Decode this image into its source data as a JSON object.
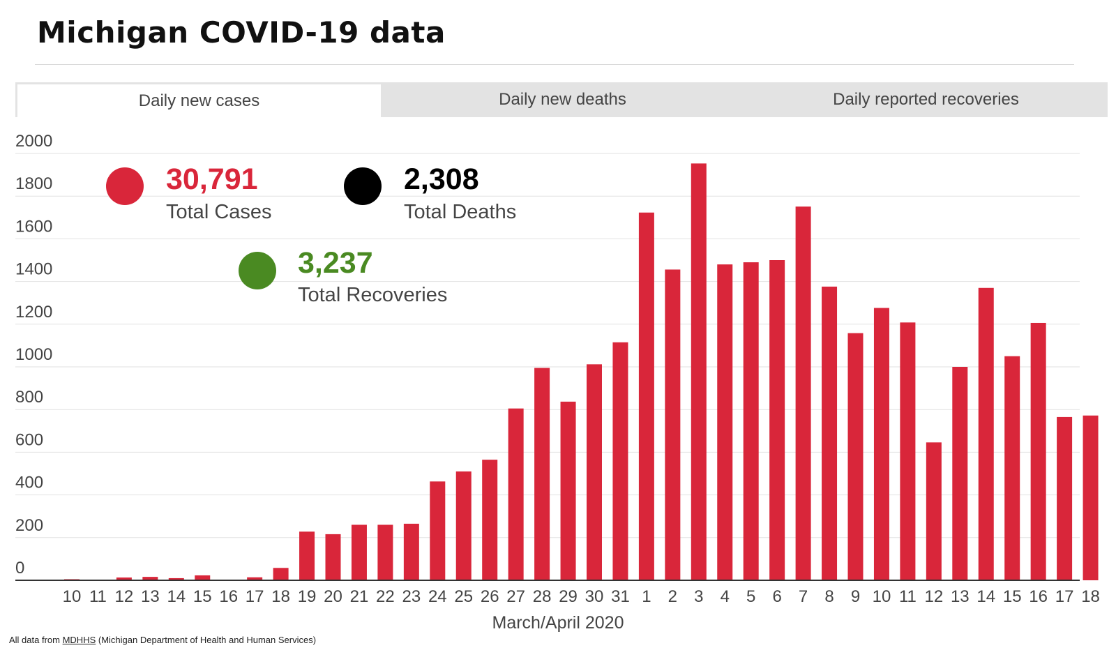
{
  "title": "Michigan COVID-19 data",
  "tabs": [
    "Daily new cases",
    "Daily new deaths",
    "Daily reported recoveries"
  ],
  "stats": {
    "cases": {
      "value": "30,791",
      "label": "Total Cases",
      "color": "#d9263a"
    },
    "deaths": {
      "value": "2,308",
      "label": "Total Deaths",
      "color": "#000000"
    },
    "recoveries": {
      "value": "3,237",
      "label": "Total Recoveries",
      "color": "#4a8a22"
    }
  },
  "footnote": {
    "prefix": "All data from ",
    "link": "MDHHS",
    "suffix": " (Michigan Department of Health and Human Services)"
  },
  "chart_data": {
    "type": "bar",
    "title": "Daily new cases",
    "xlabel": "March/April 2020",
    "ylabel": "",
    "ylim": [
      0,
      2000
    ],
    "yticks": [
      0,
      200,
      400,
      600,
      800,
      1000,
      1200,
      1400,
      1600,
      1800,
      2000
    ],
    "grid": true,
    "bar_color": "#d9263a",
    "categories": [
      "10",
      "11",
      "12",
      "13",
      "14",
      "15",
      "16",
      "17",
      "18",
      "19",
      "20",
      "21",
      "22",
      "23",
      "24",
      "25",
      "26",
      "27",
      "28",
      "29",
      "30",
      "31",
      "1",
      "2",
      "3",
      "4",
      "5",
      "6",
      "7",
      "8",
      "9",
      "10",
      "11",
      "12",
      "13",
      "14",
      "15",
      "16",
      "17",
      "18"
    ],
    "values": [
      5,
      3,
      13,
      16,
      10,
      23,
      0,
      14,
      58,
      228,
      216,
      260,
      260,
      265,
      463,
      510,
      565,
      805,
      995,
      837,
      1012,
      1115,
      1723,
      1456,
      1953,
      1480,
      1490,
      1500,
      1751,
      1376,
      1158,
      1276,
      1208,
      646,
      1000,
      1370,
      1050,
      1206,
      765,
      772
    ]
  }
}
